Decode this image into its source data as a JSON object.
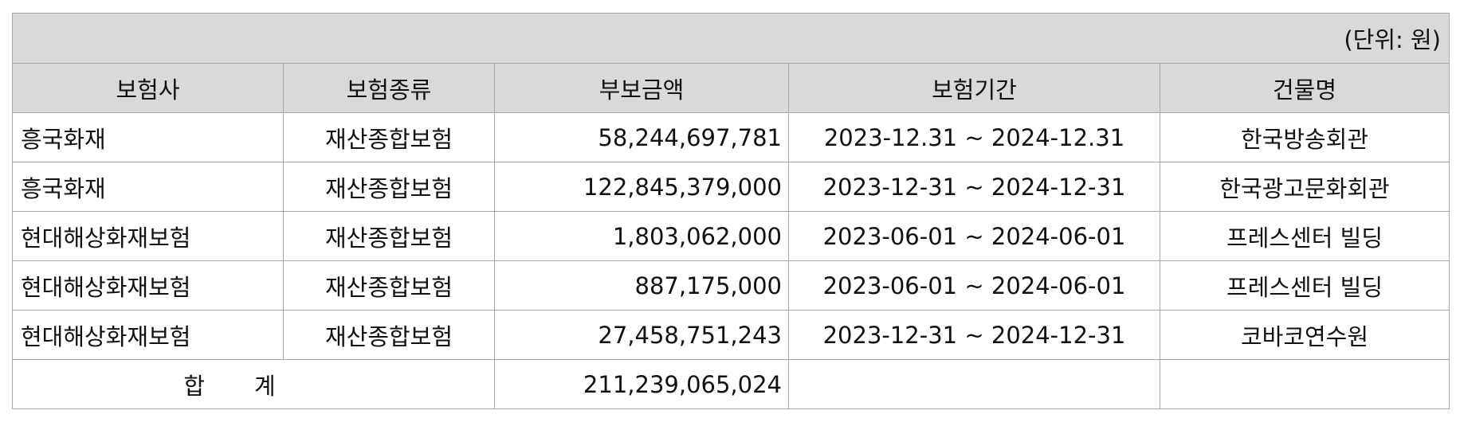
{
  "unit_note": "(단위: 원)",
  "columns": [
    "보험사",
    "보험종류",
    "부보금액",
    "보험기간",
    "건물명"
  ],
  "rows": [
    {
      "insurer": "흥국화재",
      "type": "재산종합보험",
      "amount": "58,244,697,781",
      "period": "2023-12.31 ~ 2024-12.31",
      "building": "한국방송회관"
    },
    {
      "insurer": "흥국화재",
      "type": "재산종합보험",
      "amount": "122,845,379,000",
      "period": "2023-12-31 ~ 2024-12-31",
      "building": "한국광고문화회관"
    },
    {
      "insurer": "현대해상화재보험",
      "type": "재산종합보험",
      "amount": "1,803,062,000",
      "period": "2023-06-01 ~ 2024-06-01",
      "building": "프레스센터 빌딩"
    },
    {
      "insurer": "현대해상화재보험",
      "type": "재산종합보험",
      "amount": "887,175,000",
      "period": "2023-06-01 ~ 2024-06-01",
      "building": "프레스센터 빌딩"
    },
    {
      "insurer": "현대해상화재보험",
      "type": "재산종합보험",
      "amount": "27,458,751,243",
      "period": "2023-12-31 ~ 2024-12-31",
      "building": "코바코연수원"
    }
  ],
  "total": {
    "label_char1": "합",
    "label_char2": "계",
    "amount": "211,239,065,024"
  }
}
